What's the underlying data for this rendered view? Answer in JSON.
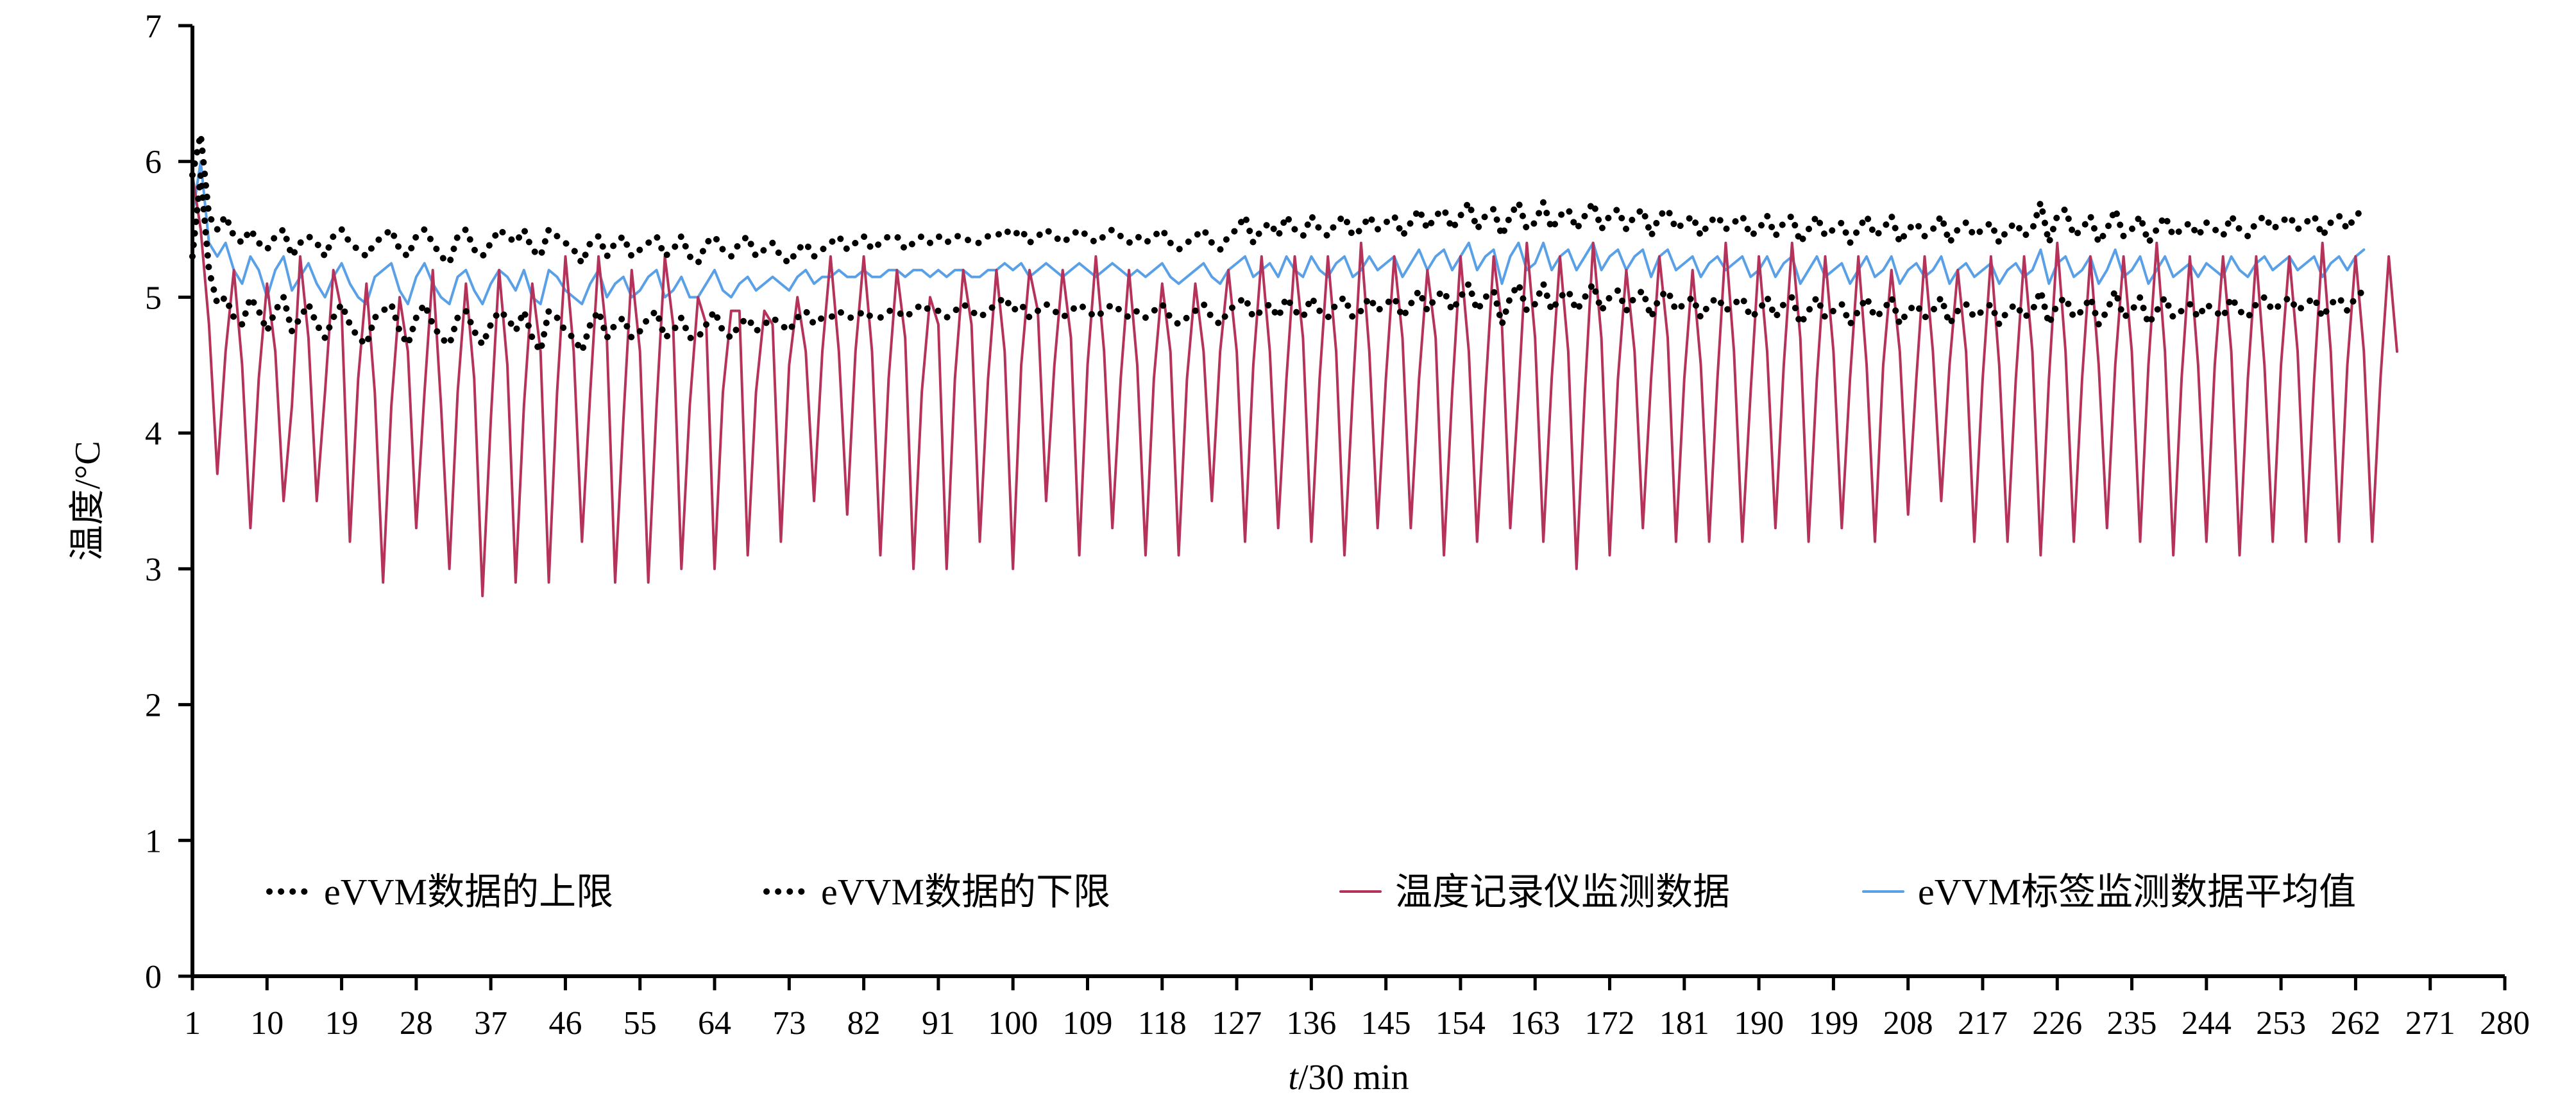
{
  "chart_data": {
    "type": "line",
    "title": "",
    "xlabel_italic": "t",
    "xlabel_rest": "/30 min",
    "ylabel": "温度/°C",
    "xlim": [
      1,
      280
    ],
    "ylim": [
      0,
      7
    ],
    "x_ticks": [
      1,
      10,
      19,
      28,
      37,
      46,
      55,
      64,
      73,
      82,
      91,
      100,
      109,
      118,
      127,
      136,
      145,
      154,
      163,
      172,
      181,
      190,
      199,
      208,
      217,
      226,
      235,
      244,
      253,
      262,
      271,
      280
    ],
    "y_ticks": [
      0,
      1,
      2,
      3,
      4,
      5,
      6,
      7
    ],
    "grid": false,
    "legend_position": "bottom-inside",
    "series": [
      {
        "name": "eVVM数据的上限",
        "color": "#000000",
        "style": "dotted",
        "values": [
          5.9,
          6.2,
          5.6,
          5.5,
          5.6,
          5.45,
          5.4,
          5.5,
          5.4,
          5.35,
          5.45,
          5.5,
          5.3,
          5.4,
          5.45,
          5.4,
          5.3,
          5.45,
          5.5,
          5.4,
          5.35,
          5.3,
          5.4,
          5.45,
          5.5,
          5.35,
          5.3,
          5.45,
          5.5,
          5.4,
          5.3,
          5.25,
          5.45,
          5.5,
          5.35,
          5.3,
          5.4,
          5.5,
          5.45,
          5.4,
          5.5,
          5.35,
          5.3,
          5.5,
          5.45,
          5.4,
          5.35,
          5.25,
          5.4,
          5.45,
          5.3,
          5.4,
          5.45,
          5.3,
          5.35,
          5.4,
          5.45,
          5.3,
          5.35,
          5.45,
          5.3,
          5.25,
          5.4,
          5.45,
          5.35,
          5.3,
          5.4,
          5.45,
          5.3,
          5.35,
          5.4,
          5.3,
          5.25,
          5.35,
          5.4,
          5.3,
          5.35,
          5.4,
          5.45,
          5.35,
          5.4,
          5.45,
          5.35,
          5.4,
          5.45,
          5.45,
          5.35,
          5.4,
          5.45,
          5.4,
          5.45,
          5.4,
          5.45,
          5.45,
          5.4,
          5.4,
          5.45,
          5.45,
          5.5,
          5.45,
          5.5,
          5.4,
          5.45,
          5.5,
          5.45,
          5.4,
          5.45,
          5.5,
          5.45,
          5.4,
          5.45,
          5.5,
          5.45,
          5.4,
          5.45,
          5.4,
          5.45,
          5.5,
          5.4,
          5.35,
          5.4,
          5.45,
          5.5,
          5.4,
          5.35,
          5.45,
          5.5,
          5.6,
          5.4,
          5.5,
          5.55,
          5.45,
          5.6,
          5.5,
          5.45,
          5.6,
          5.5,
          5.45,
          5.55,
          5.6,
          5.45,
          5.5,
          5.6,
          5.5,
          5.55,
          5.6,
          5.45,
          5.55,
          5.65,
          5.5,
          5.6,
          5.65,
          5.5,
          5.6,
          5.7,
          5.5,
          5.6,
          5.65,
          5.45,
          5.6,
          5.7,
          5.5,
          5.55,
          5.7,
          5.5,
          5.6,
          5.65,
          5.5,
          5.6,
          5.7,
          5.5,
          5.6,
          5.65,
          5.5,
          5.6,
          5.65,
          5.45,
          5.6,
          5.65,
          5.5,
          5.55,
          5.6,
          5.45,
          5.55,
          5.6,
          5.5,
          5.55,
          5.6,
          5.45,
          5.5,
          5.6,
          5.45,
          5.55,
          5.6,
          5.4,
          5.5,
          5.6,
          5.45,
          5.5,
          5.55,
          5.4,
          5.5,
          5.6,
          5.45,
          5.5,
          5.6,
          5.4,
          5.5,
          5.55,
          5.45,
          5.5,
          5.6,
          5.4,
          5.5,
          5.55,
          5.45,
          5.5,
          5.55,
          5.4,
          5.5,
          5.55,
          5.45,
          5.5,
          5.7,
          5.4,
          5.6,
          5.65,
          5.45,
          5.5,
          5.6,
          5.4,
          5.5,
          5.65,
          5.45,
          5.5,
          5.6,
          5.4,
          5.5,
          5.6,
          5.45,
          5.5,
          5.55,
          5.45,
          5.55,
          5.5,
          5.45,
          5.6,
          5.5,
          5.45,
          5.55,
          5.6,
          5.5,
          5.55,
          5.6,
          5.5,
          5.55,
          5.6,
          5.45,
          5.55,
          5.6,
          5.5,
          5.6,
          5.65
        ]
      },
      {
        "name": "eVVM数据的下限",
        "color": "#000000",
        "style": "dotted",
        "values": [
          5.3,
          5.9,
          5.2,
          4.95,
          5.0,
          4.85,
          4.8,
          5.0,
          4.9,
          4.75,
          4.9,
          5.0,
          4.75,
          4.85,
          4.95,
          4.8,
          4.7,
          4.85,
          4.95,
          4.8,
          4.7,
          4.65,
          4.85,
          4.9,
          4.95,
          4.75,
          4.65,
          4.85,
          4.95,
          4.8,
          4.7,
          4.65,
          4.85,
          4.9,
          4.75,
          4.65,
          4.8,
          4.9,
          4.85,
          4.75,
          4.9,
          4.7,
          4.6,
          4.9,
          4.85,
          4.75,
          4.7,
          4.6,
          4.8,
          4.9,
          4.7,
          4.8,
          4.85,
          4.7,
          4.75,
          4.85,
          4.9,
          4.7,
          4.75,
          4.85,
          4.7,
          4.7,
          4.8,
          4.9,
          4.75,
          4.7,
          4.8,
          4.85,
          4.75,
          4.8,
          4.85,
          4.8,
          4.75,
          4.85,
          4.9,
          4.8,
          4.85,
          4.85,
          4.9,
          4.85,
          4.85,
          4.9,
          4.85,
          4.85,
          4.9,
          4.9,
          4.85,
          4.9,
          4.95,
          4.9,
          4.9,
          4.85,
          4.9,
          4.95,
          4.9,
          4.85,
          4.9,
          4.95,
          5.0,
          4.9,
          4.95,
          4.85,
          4.9,
          4.95,
          4.9,
          4.85,
          4.9,
          4.95,
          4.9,
          4.85,
          4.9,
          4.95,
          4.9,
          4.85,
          4.9,
          4.85,
          4.9,
          4.95,
          4.85,
          4.8,
          4.85,
          4.9,
          4.95,
          4.85,
          4.8,
          4.9,
          4.95,
          5.0,
          4.85,
          4.9,
          4.95,
          4.85,
          5.0,
          4.9,
          4.85,
          5.0,
          4.9,
          4.85,
          4.95,
          5.0,
          4.85,
          4.9,
          5.0,
          4.9,
          4.95,
          5.0,
          4.85,
          4.95,
          5.05,
          4.9,
          5.0,
          5.05,
          4.9,
          5.0,
          5.1,
          4.9,
          5.0,
          5.05,
          4.8,
          5.0,
          5.1,
          4.9,
          4.95,
          5.1,
          4.9,
          5.0,
          5.05,
          4.9,
          5.0,
          5.1,
          4.9,
          5.0,
          5.05,
          4.9,
          5.0,
          5.05,
          4.85,
          5.0,
          5.05,
          4.9,
          4.95,
          5.0,
          4.85,
          4.95,
          5.0,
          4.9,
          4.95,
          5.0,
          4.85,
          4.9,
          5.0,
          4.85,
          4.95,
          5.0,
          4.8,
          4.9,
          5.0,
          4.85,
          4.9,
          4.95,
          4.8,
          4.9,
          5.0,
          4.85,
          4.9,
          5.0,
          4.8,
          4.9,
          4.95,
          4.85,
          4.9,
          5.0,
          4.8,
          4.9,
          4.95,
          4.85,
          4.9,
          4.95,
          4.8,
          4.9,
          4.95,
          4.85,
          4.9,
          5.05,
          4.8,
          4.95,
          5.0,
          4.85,
          4.9,
          5.0,
          4.8,
          4.9,
          5.05,
          4.85,
          4.9,
          5.0,
          4.8,
          4.9,
          5.0,
          4.85,
          4.9,
          4.95,
          4.85,
          4.95,
          4.9,
          4.85,
          5.0,
          4.9,
          4.85,
          4.95,
          5.0,
          4.9,
          4.95,
          5.0,
          4.9,
          4.95,
          5.0,
          4.85,
          4.95,
          5.0,
          4.9,
          5.0,
          5.05
        ]
      },
      {
        "name": "温度记录仪监测数据",
        "color": "#b5335a",
        "style": "solid",
        "values": [
          5.9,
          5.5,
          4.8,
          3.7,
          4.6,
          5.2,
          4.5,
          3.3,
          4.4,
          5.1,
          4.6,
          3.5,
          4.2,
          5.3,
          4.7,
          3.5,
          4.3,
          5.2,
          4.9,
          3.2,
          4.4,
          5.1,
          4.3,
          2.9,
          4.2,
          5.0,
          4.6,
          3.3,
          4.3,
          5.2,
          4.2,
          3.0,
          4.3,
          5.1,
          4.4,
          2.8,
          4.1,
          5.2,
          4.5,
          2.9,
          4.2,
          5.1,
          4.6,
          2.9,
          4.3,
          5.3,
          4.6,
          3.2,
          4.3,
          5.3,
          4.7,
          2.9,
          4.1,
          5.2,
          4.6,
          2.9,
          4.2,
          5.3,
          4.8,
          3.0,
          4.2,
          5.0,
          4.8,
          3.0,
          4.3,
          4.9,
          4.9,
          3.1,
          4.3,
          4.9,
          4.8,
          3.2,
          4.5,
          5.0,
          4.6,
          3.5,
          4.6,
          5.3,
          4.6,
          3.4,
          4.6,
          5.3,
          4.6,
          3.1,
          4.4,
          5.2,
          4.7,
          3.0,
          4.3,
          5.0,
          4.8,
          3.0,
          4.4,
          5.2,
          4.8,
          3.2,
          4.4,
          5.2,
          4.6,
          3.0,
          4.5,
          5.2,
          4.9,
          3.5,
          4.5,
          5.2,
          4.7,
          3.1,
          4.5,
          5.3,
          4.6,
          3.3,
          4.4,
          5.2,
          4.5,
          3.1,
          4.4,
          5.1,
          4.6,
          3.1,
          4.4,
          5.1,
          4.6,
          3.5,
          4.6,
          5.2,
          4.6,
          3.2,
          4.5,
          5.3,
          4.6,
          3.3,
          4.4,
          5.3,
          4.7,
          3.2,
          4.4,
          5.3,
          4.6,
          3.1,
          4.3,
          5.4,
          4.6,
          3.3,
          4.4,
          5.3,
          4.7,
          3.3,
          4.4,
          5.2,
          4.7,
          3.1,
          4.3,
          5.3,
          4.6,
          3.2,
          4.3,
          5.3,
          4.8,
          3.3,
          4.3,
          5.4,
          4.7,
          3.2,
          4.4,
          5.3,
          4.6,
          3.0,
          4.3,
          5.4,
          4.7,
          3.1,
          4.4,
          5.2,
          4.6,
          3.3,
          4.4,
          5.3,
          4.7,
          3.2,
          4.4,
          5.2,
          4.5,
          3.2,
          4.4,
          5.4,
          4.6,
          3.2,
          4.3,
          5.3,
          4.6,
          3.3,
          4.5,
          5.4,
          4.7,
          3.2,
          4.4,
          5.3,
          4.6,
          3.3,
          4.4,
          5.3,
          4.5,
          3.2,
          4.5,
          5.2,
          4.6,
          3.4,
          4.4,
          5.3,
          4.6,
          3.5,
          4.5,
          5.2,
          4.6,
          3.2,
          4.4,
          5.3,
          4.5,
          3.2,
          4.4,
          5.3,
          4.6,
          3.1,
          4.4,
          5.4,
          4.6,
          3.2,
          4.4,
          5.3,
          4.5,
          3.3,
          4.5,
          5.3,
          4.6,
          3.2,
          4.5,
          5.4,
          4.6,
          3.1,
          4.4,
          5.3,
          4.5,
          3.2,
          4.5,
          5.3,
          4.6,
          3.1,
          4.4,
          5.3,
          4.5,
          3.2,
          4.5,
          5.3,
          4.6,
          3.2,
          4.4,
          5.4,
          4.6,
          3.2,
          4.5,
          5.3,
          4.6,
          3.2,
          4.4,
          5.3,
          4.6
        ]
      },
      {
        "name": "eVVM标签监测数据平均值",
        "color": "#5aa0e6",
        "style": "solid",
        "values": [
          5.6,
          6.0,
          5.4,
          5.3,
          5.4,
          5.2,
          5.1,
          5.3,
          5.2,
          5.0,
          5.2,
          5.3,
          5.05,
          5.15,
          5.25,
          5.1,
          5.0,
          5.15,
          5.25,
          5.1,
          5.0,
          4.95,
          5.15,
          5.2,
          5.25,
          5.05,
          4.95,
          5.15,
          5.25,
          5.1,
          5.0,
          4.95,
          5.15,
          5.2,
          5.05,
          4.95,
          5.1,
          5.2,
          5.15,
          5.05,
          5.2,
          5.0,
          4.95,
          5.2,
          5.15,
          5.05,
          5.0,
          4.95,
          5.1,
          5.2,
          5.0,
          5.1,
          5.15,
          5.0,
          5.05,
          5.15,
          5.2,
          5.0,
          5.05,
          5.15,
          5.0,
          5.0,
          5.1,
          5.2,
          5.05,
          5.0,
          5.1,
          5.15,
          5.05,
          5.1,
          5.15,
          5.1,
          5.05,
          5.15,
          5.2,
          5.1,
          5.15,
          5.15,
          5.2,
          5.15,
          5.15,
          5.2,
          5.15,
          5.15,
          5.2,
          5.2,
          5.15,
          5.2,
          5.2,
          5.15,
          5.2,
          5.15,
          5.2,
          5.2,
          5.15,
          5.15,
          5.2,
          5.2,
          5.25,
          5.2,
          5.25,
          5.15,
          5.2,
          5.25,
          5.2,
          5.15,
          5.2,
          5.25,
          5.2,
          5.15,
          5.2,
          5.25,
          5.2,
          5.15,
          5.2,
          5.15,
          5.2,
          5.25,
          5.15,
          5.1,
          5.15,
          5.2,
          5.25,
          5.15,
          5.1,
          5.2,
          5.25,
          5.3,
          5.15,
          5.2,
          5.25,
          5.15,
          5.3,
          5.2,
          5.15,
          5.3,
          5.2,
          5.15,
          5.25,
          5.3,
          5.15,
          5.2,
          5.3,
          5.2,
          5.25,
          5.3,
          5.15,
          5.25,
          5.35,
          5.2,
          5.3,
          5.35,
          5.2,
          5.3,
          5.4,
          5.2,
          5.3,
          5.35,
          5.1,
          5.3,
          5.4,
          5.2,
          5.25,
          5.4,
          5.2,
          5.3,
          5.35,
          5.2,
          5.3,
          5.4,
          5.2,
          5.3,
          5.35,
          5.2,
          5.3,
          5.35,
          5.15,
          5.3,
          5.35,
          5.2,
          5.25,
          5.3,
          5.15,
          5.25,
          5.3,
          5.2,
          5.25,
          5.3,
          5.15,
          5.2,
          5.3,
          5.15,
          5.25,
          5.3,
          5.1,
          5.2,
          5.3,
          5.15,
          5.2,
          5.25,
          5.1,
          5.2,
          5.3,
          5.15,
          5.2,
          5.3,
          5.1,
          5.2,
          5.25,
          5.15,
          5.2,
          5.3,
          5.1,
          5.2,
          5.25,
          5.15,
          5.2,
          5.25,
          5.1,
          5.2,
          5.25,
          5.15,
          5.2,
          5.35,
          5.1,
          5.25,
          5.3,
          5.15,
          5.2,
          5.3,
          5.1,
          5.2,
          5.35,
          5.15,
          5.2,
          5.3,
          5.1,
          5.2,
          5.3,
          5.15,
          5.2,
          5.25,
          5.15,
          5.25,
          5.2,
          5.15,
          5.3,
          5.2,
          5.15,
          5.25,
          5.3,
          5.2,
          5.25,
          5.3,
          5.2,
          5.25,
          5.3,
          5.15,
          5.25,
          5.3,
          5.2,
          5.3,
          5.35
        ]
      }
    ]
  }
}
